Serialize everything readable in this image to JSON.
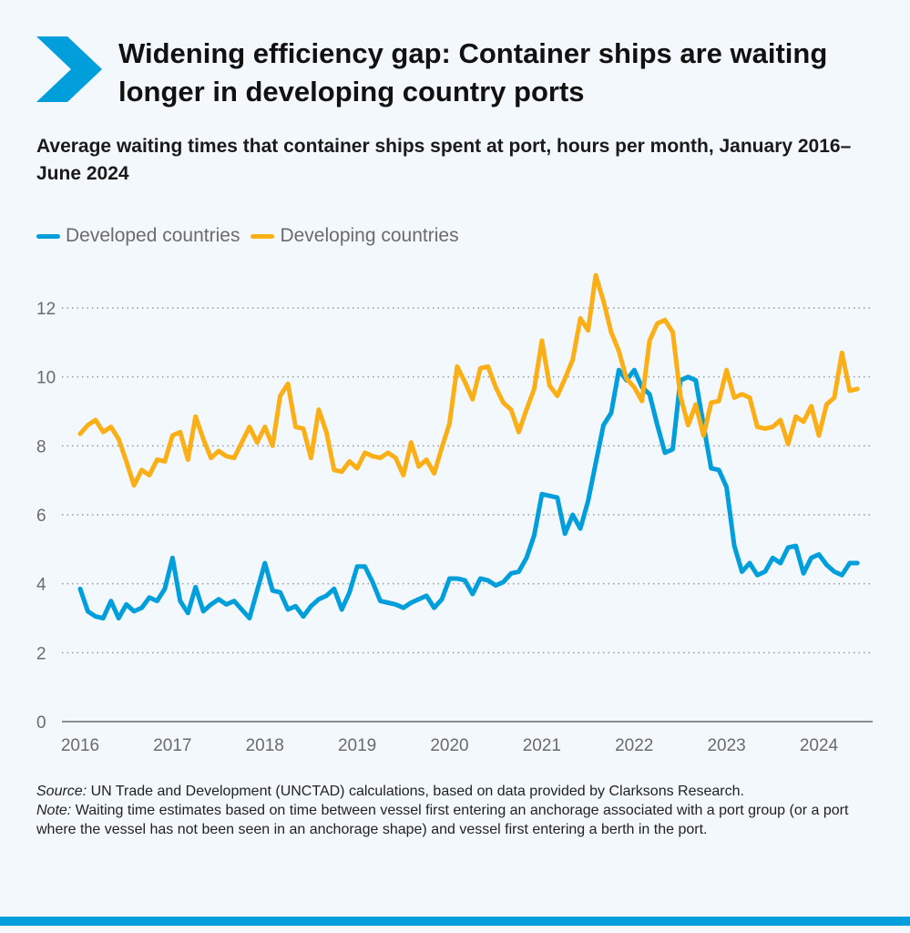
{
  "header": {
    "title": "Widening efficiency gap: Container ships are waiting longer in developing country ports",
    "subtitle": "Average waiting times that container ships spent at port, hours per month, January 2016–June 2024",
    "icon": "chevron-right-icon",
    "accent_color": "#009edb"
  },
  "notes": {
    "source_label": "Source:",
    "source_text": " UN Trade and Development (UNCTAD) calculations, based on data provided by Clarksons Research.",
    "note_label": "Note:",
    "note_text": " Waiting time estimates based on time between vessel first entering an anchorage associated with a port group (or a port where the vessel has not been seen in an anchorage shape) and vessel first entering a berth in the port."
  },
  "chart_data": {
    "type": "line",
    "title": "",
    "xlabel": "",
    "ylabel": "",
    "ylim": [
      0,
      13
    ],
    "yticks": [
      "0",
      "2",
      "4",
      "6",
      "8",
      "10",
      "12"
    ],
    "xticks": [
      "2016",
      "2017",
      "2018",
      "2019",
      "2020",
      "2021",
      "2022",
      "2023",
      "2024"
    ],
    "x_range": [
      "2016-01",
      "2024-06"
    ],
    "x_frequency": "monthly",
    "grid": "horizontal dotted",
    "legend_position": "top-left",
    "series": [
      {
        "name": "Developed countries",
        "color": "#009edb",
        "values": [
          3.85,
          3.2,
          3.05,
          3.0,
          3.5,
          3.0,
          3.4,
          3.2,
          3.3,
          3.6,
          3.5,
          3.85,
          4.75,
          3.5,
          3.15,
          3.9,
          3.2,
          3.4,
          3.55,
          3.4,
          3.5,
          3.25,
          3.0,
          3.8,
          4.6,
          3.8,
          3.75,
          3.25,
          3.35,
          3.05,
          3.35,
          3.55,
          3.65,
          3.85,
          3.25,
          3.75,
          4.5,
          4.5,
          4.05,
          3.5,
          3.45,
          3.4,
          3.3,
          3.45,
          3.55,
          3.65,
          3.3,
          3.55,
          4.15,
          4.15,
          4.1,
          3.7,
          4.15,
          4.1,
          3.95,
          4.05,
          4.3,
          4.35,
          4.75,
          5.4,
          6.6,
          6.55,
          6.5,
          5.45,
          6.0,
          5.6,
          6.4,
          7.5,
          8.6,
          8.95,
          10.2,
          9.9,
          10.2,
          9.7,
          9.5,
          8.6,
          7.8,
          7.9,
          9.9,
          10.0,
          9.9,
          8.6,
          7.35,
          7.3,
          6.8,
          5.1,
          4.35,
          4.6,
          4.25,
          4.35,
          4.75,
          4.6,
          5.05,
          5.1,
          4.3,
          4.75,
          4.85,
          4.55,
          4.35,
          4.25,
          4.6,
          4.6
        ]
      },
      {
        "name": "Developing countries",
        "color": "#fbaf17",
        "values": [
          8.35,
          8.6,
          8.75,
          8.4,
          8.55,
          8.2,
          7.55,
          6.85,
          7.3,
          7.15,
          7.6,
          7.55,
          8.3,
          8.4,
          7.6,
          8.85,
          8.2,
          7.65,
          7.85,
          7.7,
          7.65,
          8.1,
          8.55,
          8.1,
          8.55,
          8.0,
          9.45,
          9.8,
          8.55,
          8.5,
          7.65,
          9.05,
          8.4,
          7.3,
          7.25,
          7.55,
          7.35,
          7.8,
          7.7,
          7.65,
          7.8,
          7.65,
          7.15,
          8.1,
          7.4,
          7.6,
          7.2,
          7.95,
          8.65,
          10.3,
          9.85,
          9.35,
          10.25,
          10.3,
          9.7,
          9.25,
          9.05,
          8.4,
          9.05,
          9.65,
          11.05,
          9.75,
          9.45,
          9.95,
          10.5,
          11.7,
          11.35,
          12.95,
          12.2,
          11.3,
          10.75,
          9.95,
          9.7,
          9.3,
          11.05,
          11.55,
          11.65,
          11.3,
          9.45,
          8.6,
          9.2,
          8.3,
          9.25,
          9.3,
          10.2,
          9.4,
          9.5,
          9.4,
          8.55,
          8.5,
          8.55,
          8.75,
          8.05,
          8.85,
          8.7,
          9.15,
          8.3,
          9.2,
          9.4,
          10.7,
          9.6,
          9.65
        ]
      }
    ]
  }
}
